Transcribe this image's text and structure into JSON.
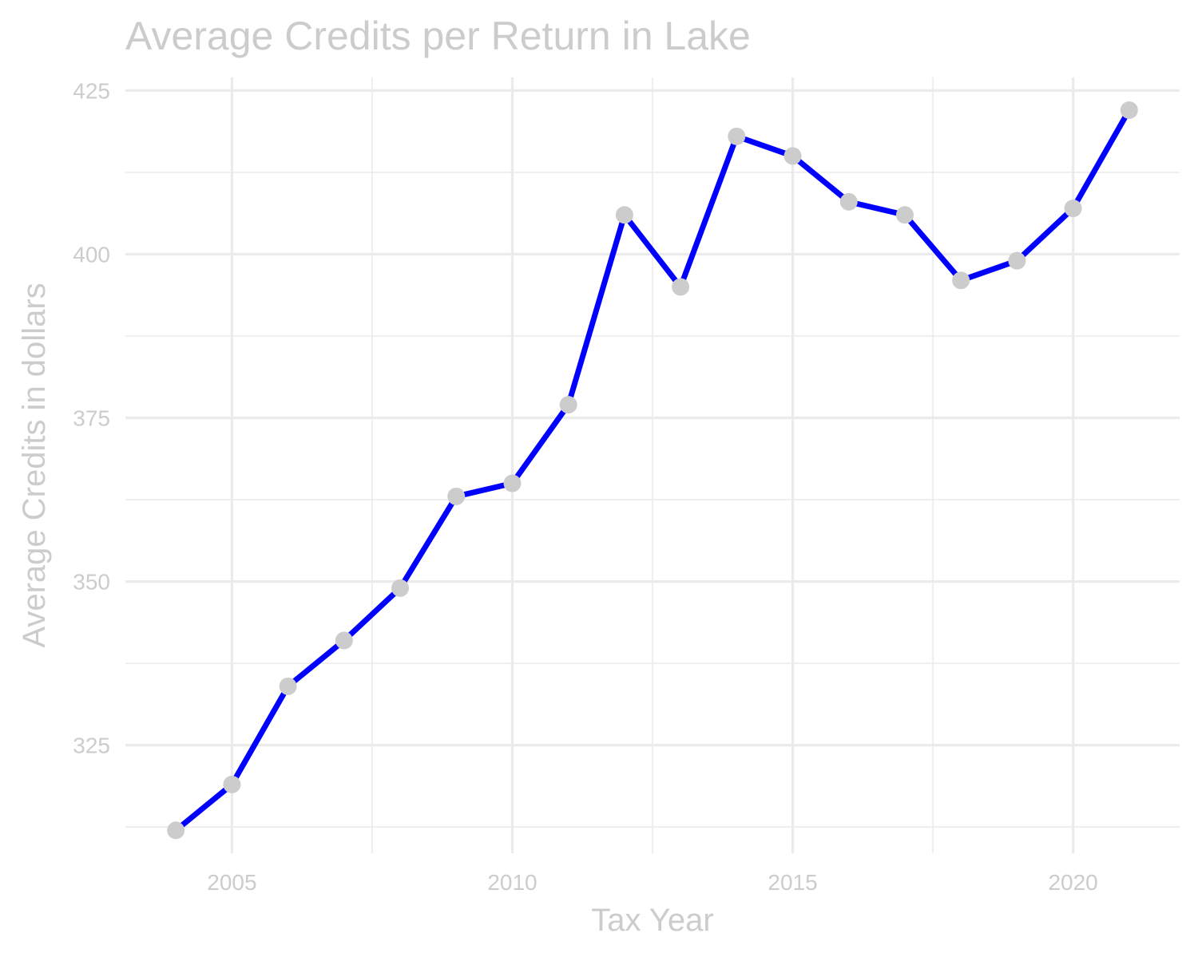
{
  "chart_data": {
    "type": "line",
    "title": "Average Credits per Return in Lake",
    "xlabel": "Tax Year",
    "ylabel": "Average Credits in dollars",
    "x": [
      2004,
      2005,
      2006,
      2007,
      2008,
      2009,
      2010,
      2011,
      2012,
      2013,
      2014,
      2015,
      2016,
      2017,
      2018,
      2019,
      2020,
      2021
    ],
    "series": [
      {
        "values": [
          312,
          319,
          334,
          341,
          349,
          363,
          365,
          377,
          406,
          395,
          418,
          415,
          408,
          406,
          396,
          399,
          407,
          422
        ]
      }
    ],
    "xlim": [
      2003.1,
      2021.9
    ],
    "ylim": [
      308.5,
      427
    ],
    "x_ticks": [
      "2005",
      "2010",
      "2015",
      "2020"
    ],
    "x_tick_values": [
      2005,
      2010,
      2015,
      2020
    ],
    "y_ticks": [
      "325",
      "350",
      "375",
      "400",
      "425"
    ],
    "y_tick_values": [
      325,
      350,
      375,
      400,
      425
    ],
    "grid": true,
    "legend": "none",
    "colors": {
      "line": "#0000ff",
      "points": "#cccccc",
      "grid": "#ebebeb",
      "text": "#cccccc"
    }
  }
}
